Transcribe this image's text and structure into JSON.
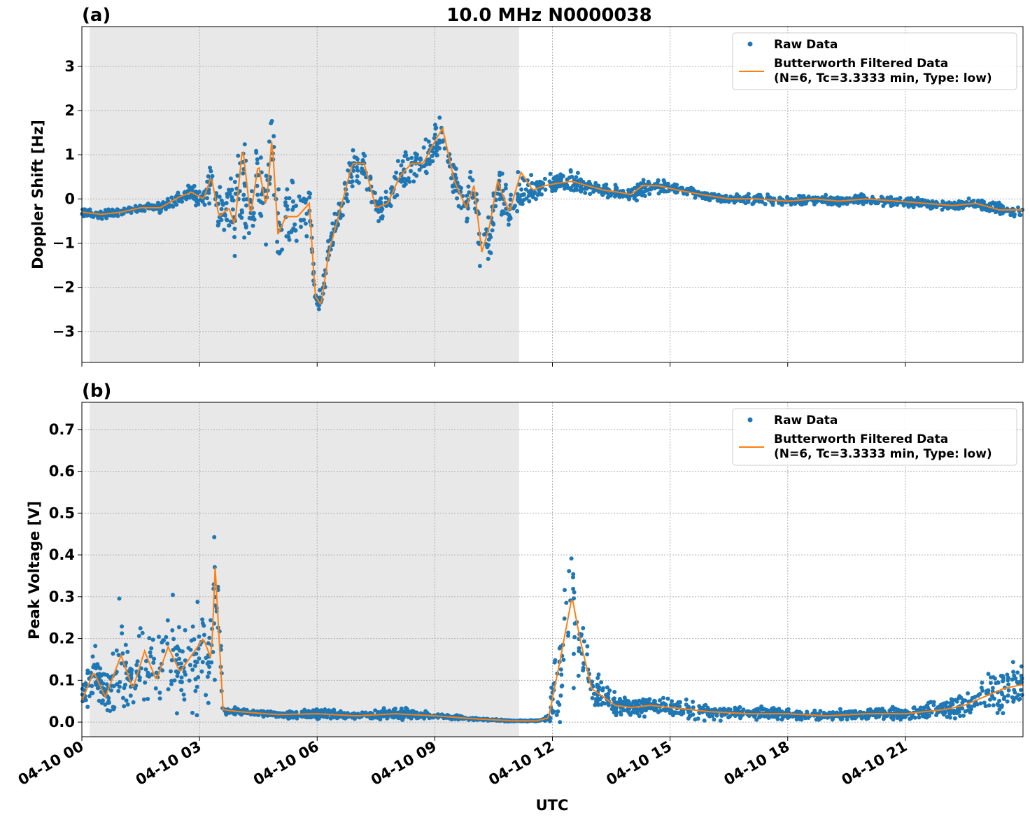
{
  "figure": {
    "title": "10.0 MHz N0000038",
    "xlabel": "UTC",
    "x_tick_labels": [
      "04-10 00",
      "04-10 03",
      "04-10 06",
      "04-10 09",
      "04-10 12",
      "04-10 15",
      "04-10 18",
      "04-10 21"
    ],
    "shade_label": "",
    "colors": {
      "raw": "#1f77b4",
      "filtered": "#ff7f0e",
      "shade": "#e8e8e8",
      "grid": "#b0b0b0"
    }
  },
  "legend": {
    "raw_label": "Raw Data",
    "filtered_label_line1": "Butterworth Filtered Data",
    "filtered_label_line2": "(N=6, Tc=3.3333 min, Type: low)",
    "placement": "top-right"
  },
  "chart_data": [
    {
      "panel": "(a)",
      "type": "scatter",
      "ylabel": "Doppler Shift [Hz]",
      "xlim_hours": [
        0,
        24
      ],
      "ylim": [
        -3.7,
        3.9
      ],
      "y_ticks": [
        -3,
        -2,
        -1,
        0,
        1,
        2,
        3
      ],
      "y_tick_labels": [
        "−3",
        "−2",
        "−1",
        "0",
        "1",
        "2",
        "3"
      ],
      "night_shading_hours": [
        0.2,
        11.15
      ],
      "grid": true,
      "series": [
        {
          "name": "Raw Data",
          "x": [
            0,
            0.5,
            1,
            1.5,
            2,
            2.5,
            2.8,
            3.1,
            3.3,
            3.5,
            3.75,
            3.9,
            4.1,
            4.3,
            4.5,
            4.7,
            4.85,
            5.0,
            5.2,
            5.5,
            5.8,
            5.95,
            6.1,
            6.3,
            6.6,
            6.9,
            7.2,
            7.5,
            7.8,
            8.1,
            8.4,
            8.7,
            9.0,
            9.2,
            9.5,
            9.8,
            10.0,
            10.2,
            10.4,
            10.6,
            10.9,
            11.2,
            11.5,
            11.8,
            12.1,
            12.5,
            12.9,
            13.3,
            13.7,
            14.0,
            14.3,
            14.7,
            15.2,
            15.8,
            16.5,
            17.2,
            18.0,
            18.7,
            19.3,
            20.0,
            20.8,
            21.5,
            22.2,
            22.8,
            23.4,
            24
          ],
          "y_center": [
            -0.3,
            -0.35,
            -0.3,
            -0.2,
            -0.2,
            0.05,
            0.15,
            0.0,
            0.4,
            -0.3,
            -0.2,
            -0.5,
            0.4,
            -0.3,
            0.6,
            -0.2,
            1.3,
            -0.8,
            -0.4,
            -0.4,
            -0.1,
            -2.2,
            -2.4,
            -1.2,
            -0.2,
            0.7,
            0.8,
            -0.2,
            -0.1,
            0.5,
            0.7,
            0.8,
            1.2,
            1.5,
            0.4,
            -0.2,
            0.3,
            -1.5,
            -0.8,
            0.3,
            -0.4,
            0.2,
            0.2,
            0.3,
            0.35,
            0.4,
            0.3,
            0.2,
            0.15,
            0.1,
            0.2,
            0.3,
            0.2,
            0.1,
            0.0,
            0.0,
            -0.05,
            0.0,
            -0.05,
            0.0,
            -0.05,
            -0.1,
            -0.15,
            -0.1,
            -0.25,
            -0.3
          ],
          "y_spread": [
            0.15,
            0.15,
            0.15,
            0.15,
            0.15,
            0.2,
            0.3,
            0.4,
            0.6,
            0.8,
            0.9,
            1.4,
            1.6,
            1.4,
            1.5,
            1.5,
            1.6,
            1.5,
            1.2,
            1.0,
            0.8,
            0.3,
            0.4,
            0.5,
            0.5,
            0.6,
            0.5,
            0.5,
            0.5,
            0.6,
            0.6,
            0.6,
            0.7,
            0.7,
            0.6,
            0.7,
            0.8,
            0.7,
            0.8,
            0.8,
            0.8,
            0.6,
            0.4,
            0.3,
            0.3,
            0.3,
            0.2,
            0.2,
            0.2,
            0.2,
            0.3,
            0.2,
            0.15,
            0.15,
            0.15,
            0.15,
            0.15,
            0.15,
            0.15,
            0.15,
            0.15,
            0.15,
            0.15,
            0.2,
            0.2,
            0.2
          ]
        },
        {
          "name": "Butterworth Filtered Data",
          "x": [
            0,
            0.5,
            1,
            1.5,
            2,
            2.5,
            2.8,
            3.1,
            3.3,
            3.5,
            3.75,
            3.9,
            4.1,
            4.3,
            4.5,
            4.7,
            4.85,
            5.0,
            5.2,
            5.5,
            5.8,
            5.95,
            6.1,
            6.3,
            6.6,
            6.9,
            7.2,
            7.5,
            7.8,
            8.1,
            8.4,
            8.7,
            9.0,
            9.2,
            9.5,
            9.8,
            10.0,
            10.2,
            10.4,
            10.6,
            10.9,
            11.2,
            11.5,
            11.8,
            12.1,
            12.5,
            12.9,
            13.3,
            13.7,
            14.0,
            14.3,
            14.7,
            15.2,
            15.8,
            16.5,
            17.2,
            18.0,
            18.7,
            19.3,
            20.0,
            20.8,
            21.5,
            22.2,
            22.8,
            23.4,
            24
          ],
          "y": [
            -0.3,
            -0.35,
            -0.3,
            -0.2,
            -0.2,
            0.05,
            0.15,
            0.0,
            0.5,
            -0.4,
            -0.2,
            -0.6,
            1.2,
            -0.4,
            0.8,
            -0.2,
            1.4,
            -0.8,
            -0.4,
            -0.4,
            -0.1,
            -2.2,
            -2.4,
            -1.2,
            -0.2,
            0.8,
            0.8,
            -0.2,
            -0.1,
            0.5,
            0.8,
            0.8,
            1.3,
            1.6,
            0.4,
            -0.2,
            0.3,
            -1.2,
            -0.6,
            0.4,
            -0.3,
            0.6,
            0.2,
            0.3,
            0.35,
            0.4,
            0.3,
            0.2,
            0.15,
            0.1,
            0.3,
            0.3,
            0.2,
            0.1,
            0.0,
            0.0,
            -0.05,
            0.0,
            -0.05,
            0.0,
            -0.05,
            -0.1,
            -0.15,
            -0.1,
            -0.25,
            -0.25
          ]
        }
      ]
    },
    {
      "panel": "(b)",
      "type": "scatter",
      "ylabel": "Peak Voltage [V]",
      "xlim_hours": [
        0,
        24
      ],
      "ylim": [
        -0.035,
        0.765
      ],
      "y_ticks": [
        0.0,
        0.1,
        0.2,
        0.3,
        0.4,
        0.5,
        0.6,
        0.7
      ],
      "y_tick_labels": [
        "0.0",
        "0.1",
        "0.2",
        "0.3",
        "0.4",
        "0.5",
        "0.6",
        "0.7"
      ],
      "night_shading_hours": [
        0.2,
        11.15
      ],
      "grid": true,
      "series": [
        {
          "name": "Raw Data",
          "x": [
            0,
            0.3,
            0.6,
            1.0,
            1.3,
            1.6,
            1.9,
            2.2,
            2.5,
            2.8,
            3.1,
            3.3,
            3.4,
            3.5,
            3.6,
            4.0,
            5.0,
            6.0,
            7.0,
            8.0,
            9.0,
            10.0,
            11.0,
            11.6,
            11.9,
            12.2,
            12.5,
            12.7,
            13.0,
            13.3,
            13.6,
            14.0,
            14.5,
            15.0,
            15.5,
            16.0,
            17.0,
            18.0,
            19.0,
            20.0,
            21.0,
            22.0,
            22.5,
            23.0,
            23.5,
            24
          ],
          "y_center": [
            0.05,
            0.12,
            0.06,
            0.14,
            0.08,
            0.15,
            0.1,
            0.16,
            0.12,
            0.14,
            0.18,
            0.15,
            0.35,
            0.2,
            0.03,
            0.025,
            0.018,
            0.02,
            0.015,
            0.02,
            0.015,
            0.008,
            0.003,
            0.003,
            0.01,
            0.12,
            0.3,
            0.2,
            0.08,
            0.06,
            0.04,
            0.035,
            0.04,
            0.035,
            0.03,
            0.025,
            0.02,
            0.02,
            0.015,
            0.02,
            0.02,
            0.03,
            0.04,
            0.06,
            0.08,
            0.09
          ],
          "y_spread": [
            0.05,
            0.1,
            0.06,
            0.2,
            0.08,
            0.2,
            0.1,
            0.25,
            0.15,
            0.2,
            0.15,
            0.15,
            0.38,
            0.2,
            0.02,
            0.01,
            0.01,
            0.02,
            0.01,
            0.02,
            0.01,
            0.005,
            0.002,
            0.002,
            0.01,
            0.18,
            0.25,
            0.15,
            0.06,
            0.06,
            0.04,
            0.03,
            0.03,
            0.03,
            0.03,
            0.025,
            0.02,
            0.02,
            0.015,
            0.02,
            0.02,
            0.03,
            0.05,
            0.06,
            0.08,
            0.07
          ]
        },
        {
          "name": "Butterworth Filtered Data",
          "x": [
            0,
            0.3,
            0.6,
            1.0,
            1.3,
            1.6,
            1.9,
            2.2,
            2.5,
            2.8,
            3.1,
            3.3,
            3.4,
            3.5,
            3.6,
            4.0,
            5.0,
            6.0,
            7.0,
            8.0,
            9.0,
            10.0,
            11.0,
            11.6,
            11.9,
            12.2,
            12.5,
            12.7,
            13.0,
            13.3,
            13.6,
            14.0,
            14.5,
            15.0,
            15.5,
            16.0,
            17.0,
            18.0,
            19.0,
            20.0,
            21.0,
            22.0,
            22.5,
            23.0,
            23.5,
            24
          ],
          "y": [
            0.05,
            0.12,
            0.06,
            0.16,
            0.08,
            0.17,
            0.1,
            0.18,
            0.12,
            0.16,
            0.2,
            0.15,
            0.37,
            0.2,
            0.03,
            0.025,
            0.018,
            0.02,
            0.015,
            0.02,
            0.015,
            0.008,
            0.003,
            0.003,
            0.01,
            0.15,
            0.3,
            0.2,
            0.08,
            0.06,
            0.04,
            0.035,
            0.04,
            0.035,
            0.03,
            0.025,
            0.02,
            0.02,
            0.015,
            0.02,
            0.02,
            0.03,
            0.04,
            0.06,
            0.08,
            0.09
          ]
        }
      ]
    }
  ]
}
